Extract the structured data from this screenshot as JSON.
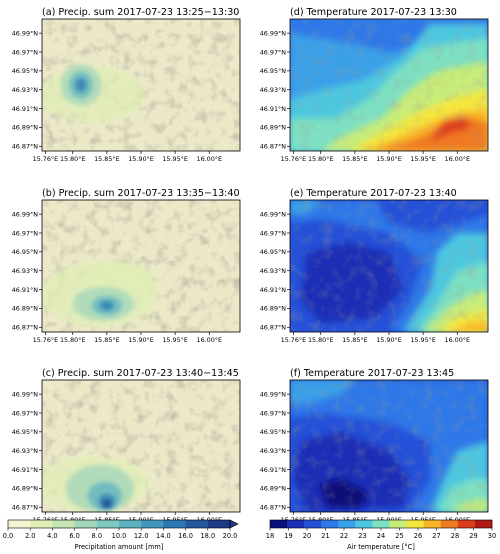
{
  "panels": [
    {
      "title": "(a) Precip. sum 2017-07-23 13:25−13:30",
      "kind": "precip",
      "col": 0,
      "row": 0
    },
    {
      "title": "(b) Precip. sum 2017-07-23 13:35−13:40",
      "kind": "precip",
      "col": 0,
      "row": 1
    },
    {
      "title": "(c) Precip. sum 2017-07-23 13:40−13:45",
      "kind": "precip",
      "col": 0,
      "row": 2
    },
    {
      "title": "(d) Temperature 2017-07-23 13:30",
      "kind": "temp",
      "col": 1,
      "row": 0
    },
    {
      "title": "(e) Temperature 2017-07-23 13:40",
      "kind": "temp",
      "col": 1,
      "row": 1
    },
    {
      "title": "(f) Temperature 2017-07-23 13:45",
      "kind": "temp",
      "col": 1,
      "row": 2
    }
  ],
  "chart_data": {
    "type": "heatmap",
    "xticks": [
      "15.76°E",
      "15.80°E",
      "15.85°E",
      "15.90°E",
      "15.95°E",
      "16.00°E"
    ],
    "xtick_values": [
      15.76,
      15.8,
      15.85,
      15.9,
      15.95,
      16.0
    ],
    "yticks": [
      "46.99°N",
      "46.97°N",
      "46.95°N",
      "46.93°N",
      "46.91°N",
      "46.89°N",
      "46.87°N"
    ],
    "ytick_values": [
      46.99,
      46.97,
      46.95,
      46.93,
      46.91,
      46.89,
      46.87
    ],
    "xlim": [
      15.755,
      16.045
    ],
    "ylim": [
      46.865,
      47.005
    ],
    "precip_colorbar": {
      "label": "Precipitation amount [mm]",
      "ticks": [
        "0.0",
        "2.0",
        "4.0",
        "6.0",
        "8.0",
        "10.0",
        "12.0",
        "14.0",
        "16.0",
        "18.0",
        "20.0"
      ],
      "colors": [
        "#f4f3d4",
        "#e1efb6",
        "#c4e5b4",
        "#a1d6bb",
        "#7fc7c0",
        "#5db2c1",
        "#3f97bd",
        "#2b78b2",
        "#23589f",
        "#1f3a88"
      ],
      "extend": "max"
    },
    "temp_colorbar": {
      "label": "Air temperature [°C]",
      "ticks": [
        "18",
        "19",
        "20",
        "21",
        "22",
        "23",
        "24",
        "25",
        "26",
        "27",
        "28",
        "29",
        "30"
      ],
      "colors": [
        "#0a0f7a",
        "#1a2fb6",
        "#2551d8",
        "#2f78e8",
        "#3aa0e8",
        "#4ec7e0",
        "#7ee0c2",
        "#c8ec7a",
        "#f5e63e",
        "#f9b52a",
        "#f07a22",
        "#dc3b1c",
        "#b01a14"
      ]
    }
  }
}
